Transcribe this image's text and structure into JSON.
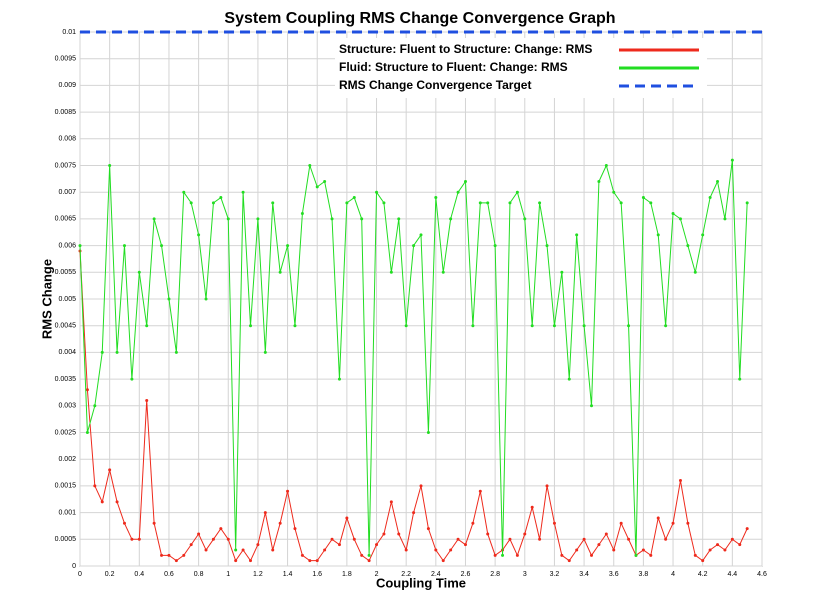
{
  "chart_data": {
    "type": "line",
    "title": "System Coupling RMS Change Convergence Graph",
    "xlabel": "Coupling Time",
    "ylabel": "RMS Change",
    "x": [
      0,
      0.05,
      0.1,
      0.15,
      0.2,
      0.25,
      0.3,
      0.35,
      0.4,
      0.45,
      0.5,
      0.55,
      0.6,
      0.65,
      0.7,
      0.75,
      0.8,
      0.85,
      0.9,
      0.95,
      1,
      1.05,
      1.1,
      1.15,
      1.2,
      1.25,
      1.3,
      1.35,
      1.4,
      1.45,
      1.5,
      1.55,
      1.6,
      1.65,
      1.7,
      1.75,
      1.8,
      1.85,
      1.9,
      1.95,
      2,
      2.05,
      2.1,
      2.15,
      2.2,
      2.25,
      2.3,
      2.35,
      2.4,
      2.45,
      2.5,
      2.55,
      2.6,
      2.65,
      2.7,
      2.75,
      2.8,
      2.85,
      2.9,
      2.95,
      3,
      3.05,
      3.1,
      3.15,
      3.2,
      3.25,
      3.3,
      3.35,
      3.4,
      3.45,
      3.5,
      3.55,
      3.6,
      3.65,
      3.7,
      3.75,
      3.8,
      3.85,
      3.9,
      3.95,
      4,
      4.05,
      4.1,
      4.15,
      4.2,
      4.25,
      4.3,
      4.35,
      4.4,
      4.45,
      4.5
    ],
    "series": [
      {
        "name": "Structure: Fluent to Structure: Change: RMS",
        "color": "#ee2a1c",
        "markers": true,
        "values": [
          0.0059,
          0.0033,
          0.0015,
          0.0012,
          0.0018,
          0.0012,
          0.0008,
          0.0005,
          0.0005,
          0.0031,
          0.0008,
          0.0002,
          0.0002,
          0.0001,
          0.0002,
          0.0004,
          0.0006,
          0.0003,
          0.0005,
          0.0007,
          0.0005,
          0.0001,
          0.0003,
          0.0001,
          0.0004,
          0.001,
          0.0003,
          0.0008,
          0.0014,
          0.0007,
          0.0002,
          0.0001,
          0.0001,
          0.0003,
          0.0005,
          0.0004,
          0.0009,
          0.0005,
          0.0002,
          0.0001,
          0.0004,
          0.0006,
          0.0012,
          0.0006,
          0.0003,
          0.001,
          0.0015,
          0.0007,
          0.0003,
          0.0001,
          0.0003,
          0.0005,
          0.0004,
          0.0008,
          0.0014,
          0.0006,
          0.0002,
          0.0003,
          0.0005,
          0.0002,
          0.0006,
          0.0011,
          0.0005,
          0.0015,
          0.0008,
          0.0002,
          0.0001,
          0.0003,
          0.0005,
          0.0002,
          0.0004,
          0.0006,
          0.0003,
          0.0008,
          0.0005,
          0.0002,
          0.0003,
          0.0002,
          0.0009,
          0.0005,
          0.0008,
          0.0016,
          0.0008,
          0.0002,
          0.0001,
          0.0003,
          0.0004,
          0.0003,
          0.0005,
          0.0004,
          0.0007
        ]
      },
      {
        "name": "Fluid: Structure to Fluent: Change: RMS",
        "color": "#22dd22",
        "markers": true,
        "values": [
          0.006,
          0.0025,
          0.003,
          0.004,
          0.0075,
          0.004,
          0.006,
          0.0035,
          0.0055,
          0.0045,
          0.0065,
          0.006,
          0.005,
          0.004,
          0.007,
          0.0068,
          0.0062,
          0.005,
          0.0068,
          0.0069,
          0.0065,
          0.0003,
          0.007,
          0.0045,
          0.0065,
          0.004,
          0.0068,
          0.0055,
          0.006,
          0.0045,
          0.0066,
          0.0075,
          0.0071,
          0.0072,
          0.0065,
          0.0035,
          0.0068,
          0.0069,
          0.0065,
          0.0002,
          0.007,
          0.0068,
          0.0055,
          0.0065,
          0.0045,
          0.006,
          0.0062,
          0.0025,
          0.0069,
          0.0055,
          0.0065,
          0.007,
          0.0072,
          0.0045,
          0.0068,
          0.0068,
          0.006,
          0.0002,
          0.0068,
          0.007,
          0.0065,
          0.0045,
          0.0068,
          0.006,
          0.0045,
          0.0055,
          0.0035,
          0.0062,
          0.0045,
          0.003,
          0.0072,
          0.0075,
          0.007,
          0.0068,
          0.0045,
          0.0002,
          0.0069,
          0.0068,
          0.0062,
          0.0045,
          0.0066,
          0.0065,
          0.006,
          0.0055,
          0.0062,
          0.0069,
          0.0072,
          0.0065,
          0.0076,
          0.0035,
          0.0068
        ]
      },
      {
        "name": "RMS Change Convergence Target",
        "color": "#1f4fe0",
        "dashed": true,
        "x": [
          0,
          4.6
        ],
        "values": [
          0.01,
          0.01
        ]
      }
    ],
    "xlim": [
      0,
      4.6
    ],
    "xticks": [
      0,
      0.2,
      0.4,
      0.6,
      0.8,
      1,
      1.2,
      1.4,
      1.6,
      1.8,
      2,
      2.2,
      2.4,
      2.6,
      2.8,
      3,
      3.2,
      3.4,
      3.6,
      3.8,
      4,
      4.2,
      4.4,
      4.6
    ],
    "ylim": [
      0,
      0.01
    ],
    "yticks": [
      0,
      0.0005,
      0.001,
      0.0015,
      0.002,
      0.0025,
      0.003,
      0.0035,
      0.004,
      0.0045,
      0.005,
      0.0055,
      0.006,
      0.0065,
      0.007,
      0.0075,
      0.008,
      0.0085,
      0.009,
      0.0095,
      0.01
    ],
    "grid": true,
    "legend": "upper right"
  }
}
